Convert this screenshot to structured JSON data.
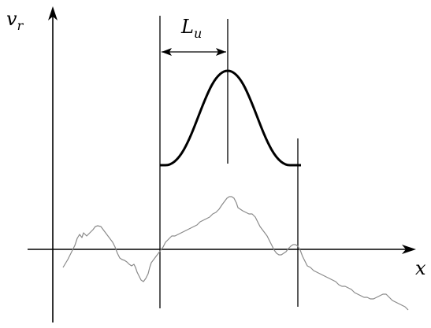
{
  "labels": {
    "y_axis": "v",
    "y_axis_subscript": "r",
    "x_axis": "x",
    "length_symbol": "L",
    "length_subscript": "u"
  },
  "colors": {
    "axes": "#000000",
    "signal": "#8a8a8a",
    "window_curve": "#000000",
    "background": "#ffffff"
  }
}
